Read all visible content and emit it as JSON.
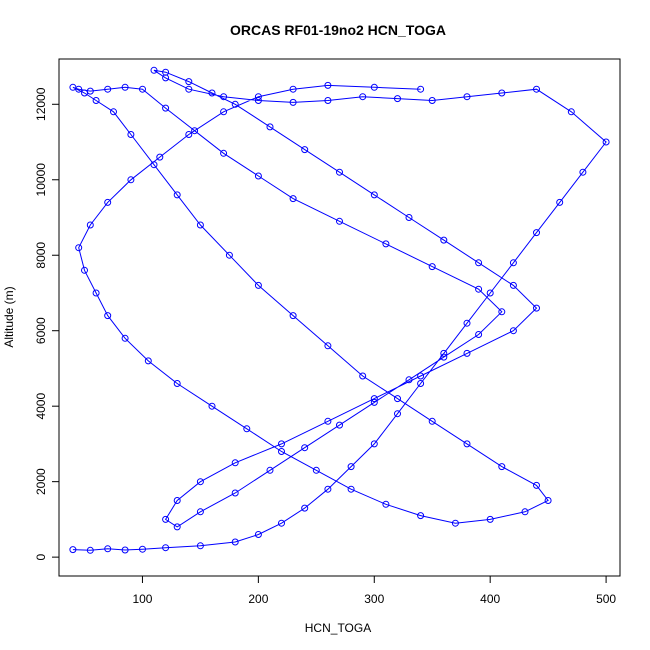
{
  "chart_data": {
    "type": "line",
    "title": "ORCAS RF01-19no2 HCN_TOGA",
    "xlabel": "HCN_TOGA",
    "ylabel": "Altitude (m)",
    "xlim": [
      28,
      512
    ],
    "ylim": [
      -500,
      13200
    ],
    "x_ticks": [
      100,
      200,
      300,
      400,
      500
    ],
    "y_ticks": [
      0,
      2000,
      4000,
      6000,
      8000,
      10000,
      12000
    ],
    "markers": "open circles connected by lines",
    "grid": false,
    "colors": {
      "series": "#0000ff",
      "axes": "#000000"
    },
    "series": [
      {
        "x": [
          40,
          55,
          70,
          85,
          100,
          120,
          150,
          180,
          200,
          220,
          240,
          260,
          280,
          300,
          320,
          340,
          360,
          380,
          400,
          420,
          440,
          460,
          480,
          500,
          470,
          440,
          410,
          380,
          350,
          320,
          290,
          260,
          230,
          200,
          170,
          140,
          120,
          110,
          120,
          140,
          160,
          180,
          210,
          240,
          270,
          300,
          330,
          360,
          390,
          420,
          440,
          420,
          380,
          340,
          300,
          260,
          220,
          180,
          150,
          130,
          120,
          130,
          150,
          180,
          210,
          240,
          270,
          300,
          330,
          360,
          390,
          410,
          390,
          350,
          310,
          270,
          230,
          200,
          170,
          145,
          120,
          100,
          85,
          70,
          55,
          45,
          40,
          50,
          60,
          75,
          90,
          110,
          130,
          150,
          175,
          200,
          230,
          260,
          290,
          320,
          350,
          380,
          410,
          440,
          450,
          430,
          400,
          370,
          340,
          310,
          280,
          250,
          220,
          190,
          160,
          130,
          105,
          85,
          70,
          60,
          50,
          45,
          55,
          70,
          90,
          115,
          140,
          170,
          200,
          230,
          260,
          300,
          340
        ],
        "y": [
          200,
          180,
          220,
          190,
          210,
          250,
          300,
          400,
          600,
          900,
          1300,
          1800,
          2400,
          3000,
          3800,
          4600,
          5400,
          6200,
          7000,
          7800,
          8600,
          9400,
          10200,
          11000,
          11800,
          12400,
          12300,
          12200,
          12100,
          12150,
          12200,
          12100,
          12050,
          12100,
          12200,
          12400,
          12700,
          12900,
          12850,
          12600,
          12300,
          12000,
          11400,
          10800,
          10200,
          9600,
          9000,
          8400,
          7800,
          7200,
          6600,
          6000,
          5400,
          4800,
          4200,
          3600,
          3000,
          2500,
          2000,
          1500,
          1000,
          800,
          1200,
          1700,
          2300,
          2900,
          3500,
          4100,
          4700,
          5300,
          5900,
          6500,
          7100,
          7700,
          8300,
          8900,
          9500,
          10100,
          10700,
          11300,
          11900,
          12400,
          12450,
          12400,
          12350,
          12400,
          12450,
          12300,
          12100,
          11800,
          11200,
          10400,
          9600,
          8800,
          8000,
          7200,
          6400,
          5600,
          4800,
          4200,
          3600,
          3000,
          2400,
          1900,
          1500,
          1200,
          1000,
          900,
          1100,
          1400,
          1800,
          2300,
          2800,
          3400,
          4000,
          4600,
          5200,
          5800,
          6400,
          7000,
          7600,
          8200,
          8800,
          9400,
          10000,
          10600,
          11200,
          11800,
          12200,
          12400,
          12500,
          12450,
          12400
        ]
      }
    ]
  }
}
